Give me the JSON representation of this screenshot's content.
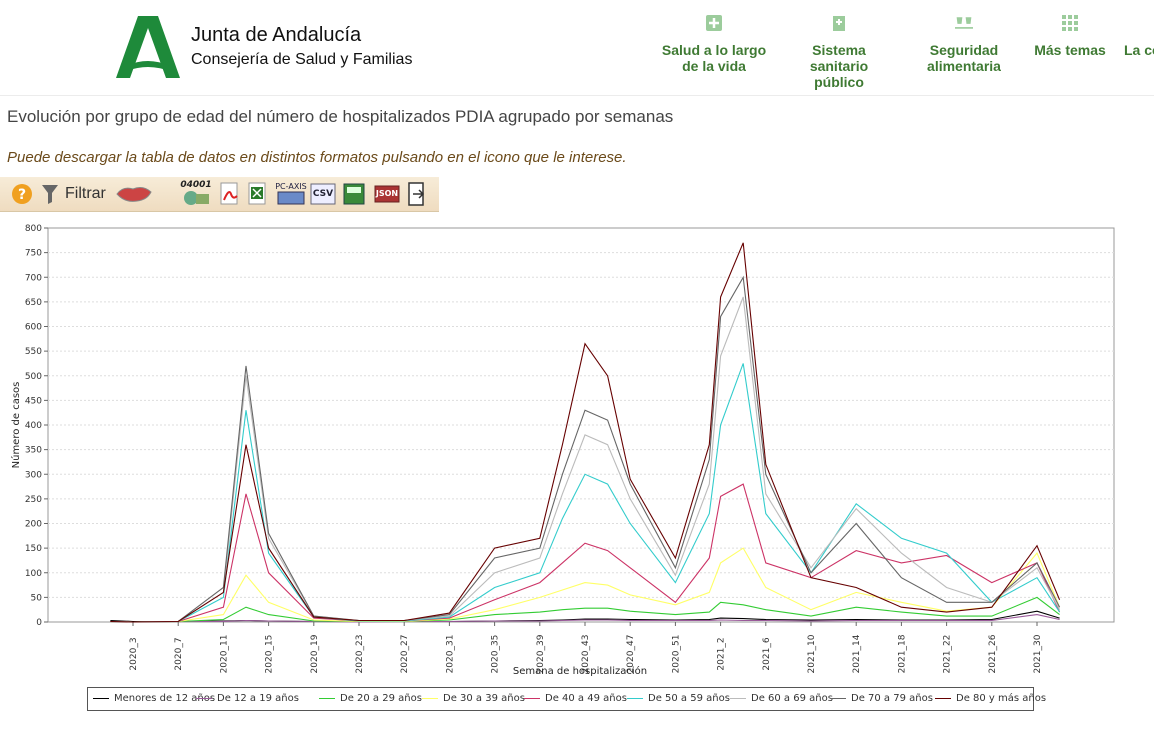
{
  "header": {
    "org_name": "Junta de Andalucía",
    "org_sub": "Consejería de Salud y Familias",
    "nav": [
      {
        "label": "Salud a lo largo\nde la vida",
        "icon": "plus-box-icon"
      },
      {
        "label": "Sistema\nsanitario\npúblico",
        "icon": "hospital-icon"
      },
      {
        "label": "Seguridad\nalimentaria",
        "icon": "glasses-icon"
      },
      {
        "label": "Más temas",
        "icon": "grid-icon"
      },
      {
        "label": "La co",
        "icon": ""
      }
    ]
  },
  "page": {
    "title": "Evolución por grupo de edad del número de hospitalizados PDIA agrupado por semanas",
    "subtitle": "Puede descargar la tabla de datos en distintos formatos pulsando en el icono que le interese."
  },
  "toolbar": {
    "filter_label": "Filtrar",
    "counter_label": "04001",
    "pcaxis_label": "PC-AXIS",
    "csv_label": "CSV",
    "json_label": "JSON",
    "icons": [
      "help-icon",
      "filter-icon",
      "map-icon",
      "query-icon",
      "pdf-icon",
      "excel-icon",
      "pcaxis-icon",
      "csv-icon",
      "calc-icon",
      "json-icon",
      "exit-icon"
    ]
  },
  "chart_data": {
    "type": "line",
    "xlabel": "Semana de hospitalización",
    "ylabel": "Número de casos",
    "ylim": [
      0,
      800
    ],
    "yticks": [
      0,
      50,
      100,
      150,
      200,
      250,
      300,
      350,
      400,
      450,
      500,
      550,
      600,
      650,
      700,
      750,
      800
    ],
    "grid": true,
    "legend_position": "bottom",
    "x_ticks": [
      "2020_3",
      "2020_7",
      "2020_11",
      "2020_15",
      "2020_19",
      "2020_23",
      "2020_27",
      "2020_31",
      "2020_35",
      "2020_39",
      "2020_43",
      "2020_47",
      "2020_51",
      "2021_2",
      "2021_6",
      "2021_10",
      "2021_14",
      "2021_18",
      "2021_22",
      "2021_26",
      "2021_30"
    ],
    "anchors_x": [
      "2020_1",
      "2020_3",
      "2020_7",
      "2020_11",
      "2020_13",
      "2020_15",
      "2020_19",
      "2020_23",
      "2020_27",
      "2020_31",
      "2020_35",
      "2020_39",
      "2020_41",
      "2020_43",
      "2020_45",
      "2020_47",
      "2020_51",
      "2021_1",
      "2021_2",
      "2021_4",
      "2021_6",
      "2021_10",
      "2021_14",
      "2021_18",
      "2021_22",
      "2021_26",
      "2021_30",
      "2021_32"
    ],
    "series": [
      {
        "name": "Menores de 12 años",
        "color": "#000000",
        "values": [
          3,
          1,
          1,
          2,
          3,
          2,
          1,
          1,
          1,
          1,
          2,
          3,
          4,
          6,
          6,
          5,
          4,
          5,
          8,
          7,
          5,
          4,
          5,
          4,
          4,
          5,
          22,
          8
        ]
      },
      {
        "name": "De 12 a 19 años",
        "color": "#9a5a9a",
        "values": [
          1,
          0,
          1,
          1,
          3,
          2,
          1,
          0,
          1,
          1,
          2,
          2,
          3,
          4,
          4,
          3,
          3,
          3,
          4,
          3,
          3,
          2,
          3,
          3,
          3,
          3,
          15,
          5
        ]
      },
      {
        "name": "De 20 a 29 años",
        "color": "#33cc33",
        "values": [
          1,
          0,
          1,
          5,
          30,
          15,
          2,
          1,
          1,
          4,
          15,
          20,
          25,
          28,
          28,
          22,
          15,
          20,
          40,
          35,
          25,
          12,
          30,
          20,
          12,
          12,
          50,
          15
        ]
      },
      {
        "name": "De 30 a 39 años",
        "color": "#ffff66",
        "values": [
          1,
          0,
          1,
          15,
          95,
          40,
          4,
          1,
          1,
          6,
          25,
          50,
          65,
          80,
          75,
          55,
          35,
          60,
          120,
          150,
          70,
          25,
          60,
          40,
          22,
          30,
          140,
          30
        ]
      },
      {
        "name": "De 40 a 49 años",
        "color": "#cc3366",
        "values": [
          1,
          0,
          1,
          30,
          260,
          100,
          8,
          2,
          2,
          8,
          45,
          80,
          120,
          160,
          145,
          110,
          40,
          130,
          255,
          280,
          120,
          90,
          145,
          120,
          135,
          80,
          120,
          20
        ]
      },
      {
        "name": "De 50 a 59 años",
        "color": "#33cccc",
        "values": [
          1,
          0,
          1,
          50,
          430,
          140,
          10,
          2,
          2,
          10,
          70,
          100,
          210,
          300,
          280,
          200,
          80,
          220,
          400,
          525,
          220,
          100,
          240,
          170,
          140,
          40,
          90,
          20
        ]
      },
      {
        "name": "De 60 a 69 años",
        "color": "#bbbbbb",
        "values": [
          1,
          0,
          1,
          60,
          500,
          170,
          12,
          3,
          3,
          12,
          100,
          130,
          260,
          380,
          360,
          250,
          95,
          280,
          540,
          660,
          260,
          110,
          230,
          140,
          70,
          40,
          110,
          25
        ]
      },
      {
        "name": "De 70 a 79 años",
        "color": "#666666",
        "values": [
          1,
          0,
          1,
          70,
          520,
          180,
          12,
          3,
          3,
          15,
          130,
          150,
          300,
          430,
          410,
          280,
          110,
          330,
          620,
          700,
          300,
          100,
          200,
          90,
          40,
          40,
          120,
          30
        ]
      },
      {
        "name": "De 80 y más años",
        "color": "#660000",
        "values": [
          1,
          0,
          1,
          60,
          360,
          150,
          10,
          3,
          3,
          18,
          150,
          170,
          360,
          565,
          500,
          290,
          130,
          360,
          660,
          770,
          320,
          90,
          70,
          30,
          20,
          30,
          155,
          45
        ]
      }
    ]
  }
}
